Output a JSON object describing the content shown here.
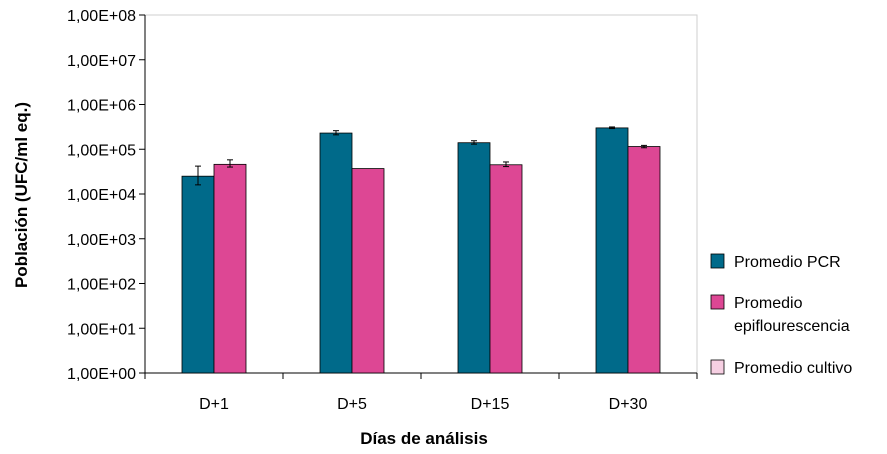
{
  "chart_data": {
    "type": "bar",
    "yscale": "log",
    "ylim": [
      1,
      100000000
    ],
    "yticks": [
      "1,00E+00",
      "1,00E+01",
      "1,00E+02",
      "1,00E+03",
      "1,00E+04",
      "1,00E+05",
      "1,00E+06",
      "1,00E+07",
      "1,00E+08"
    ],
    "categories": [
      "D+1",
      "D+5",
      "D+15",
      "D+30"
    ],
    "xlabel": "Días de análisis",
    "ylabel": "Población (UFC/ml eq.)",
    "legend_position": "right",
    "series": [
      {
        "name": "Promedio PCR",
        "color": "#006a8a",
        "values": [
          25000,
          230000,
          140000,
          300000
        ],
        "error": [
          [
            16000,
            42000
          ],
          [
            210000,
            260000
          ],
          [
            130000,
            155000
          ],
          [
            290000,
            315000
          ]
        ]
      },
      {
        "name": "Promedio epiflourescencia",
        "name_lines": [
          "Promedio",
          "epiflourescencia"
        ],
        "color": "#dd4794",
        "values": [
          46000,
          37000,
          45000,
          115000
        ],
        "error": [
          [
            40000,
            58000
          ],
          null,
          [
            41000,
            52000
          ],
          [
            108000,
            122000
          ]
        ]
      },
      {
        "name": "Promedio cultivo",
        "color": "#f6cfe2",
        "values": [
          null,
          null,
          null,
          null
        ],
        "error": [
          null,
          null,
          null,
          null
        ]
      }
    ]
  }
}
